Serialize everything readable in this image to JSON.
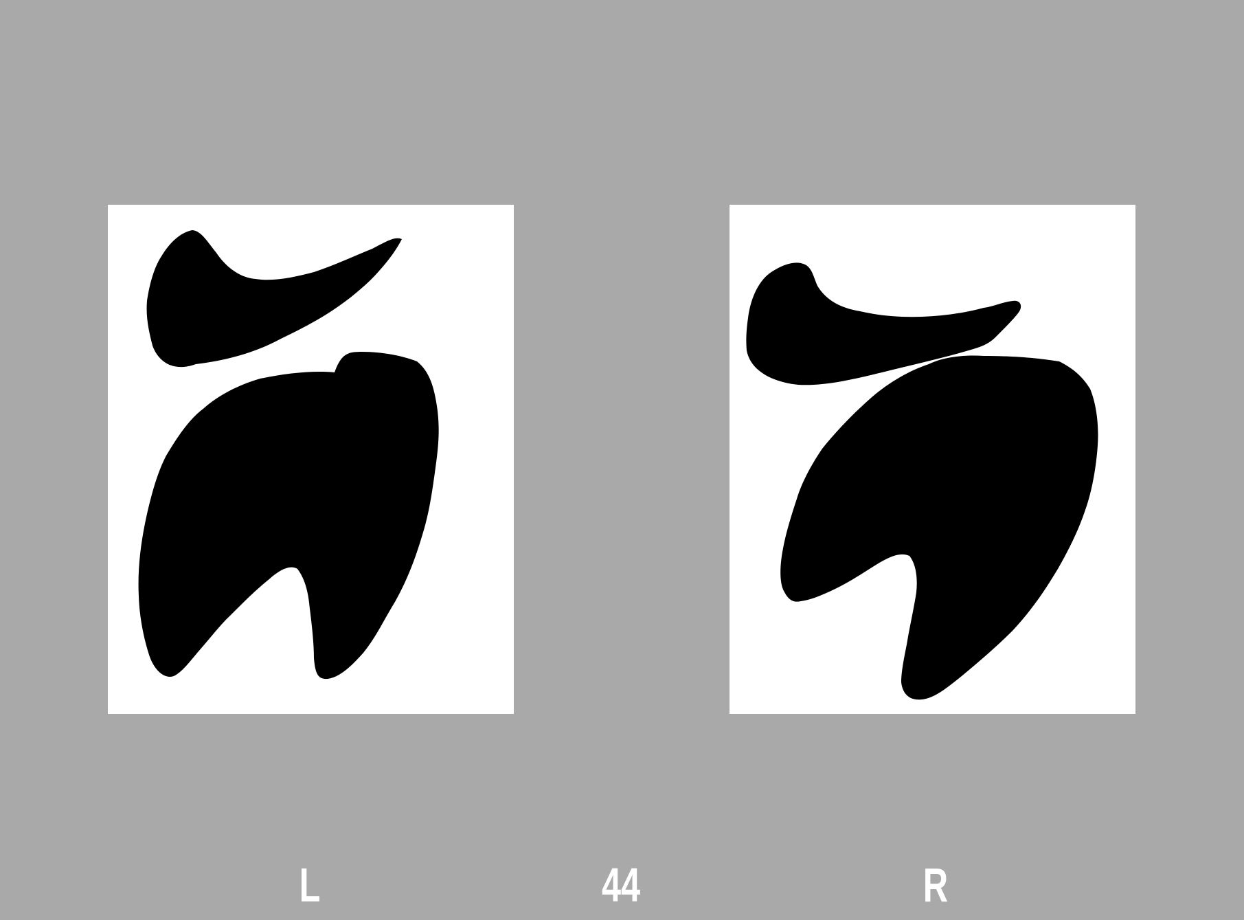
{
  "labels": {
    "left": "L",
    "center": "44",
    "right": "R"
  },
  "colors": {
    "background": "#a9a9a9",
    "panel": "#ffffff",
    "shape": "#000000",
    "label": "#ffffff"
  }
}
